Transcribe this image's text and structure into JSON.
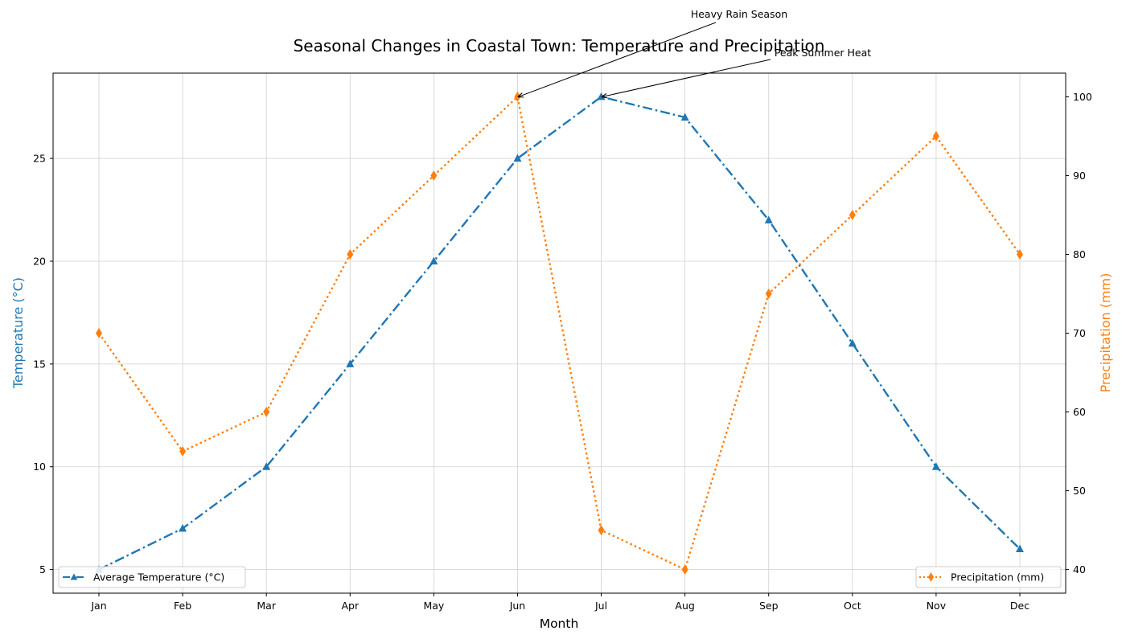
{
  "chart_data": {
    "type": "line",
    "title": "Seasonal Changes in Coastal Town: Temperature and Precipitation",
    "xlabel": "Month",
    "categories": [
      "Jan",
      "Feb",
      "Mar",
      "Apr",
      "May",
      "Jun",
      "Jul",
      "Aug",
      "Sep",
      "Oct",
      "Nov",
      "Dec"
    ],
    "y_left": {
      "label": "Temperature (°C)",
      "color": "#1f77b4",
      "ylim": [
        3.85,
        29.15
      ],
      "ticks": [
        5,
        10,
        15,
        20,
        25
      ]
    },
    "y_right": {
      "label": "Precipitation (mm)",
      "color": "#ff7f0e",
      "ylim": [
        37,
        103
      ],
      "ticks": [
        40,
        50,
        60,
        70,
        80,
        90,
        100
      ]
    },
    "series": [
      {
        "name": "Average Temperature (°C)",
        "axis": "left",
        "color": "#1f77b4",
        "marker": "triangle",
        "linestyle": "dashdot",
        "values": [
          5,
          7,
          10,
          15,
          20,
          25,
          28,
          27,
          22,
          16,
          10,
          6
        ]
      },
      {
        "name": "Precipitation (mm)",
        "axis": "right",
        "color": "#ff7f0e",
        "marker": "diamond",
        "linestyle": "dotted",
        "values": [
          70,
          55,
          60,
          80,
          90,
          100,
          45,
          40,
          75,
          85,
          95,
          80
        ]
      }
    ],
    "annotations": [
      {
        "text": "Heavy Rain Season",
        "category": "Jun",
        "axis": "right",
        "value": 100
      },
      {
        "text": "Peak Summer Heat",
        "category": "Jul",
        "axis": "left",
        "value": 28
      }
    ],
    "grid": true,
    "legends": [
      "lower-left",
      "lower-right"
    ]
  }
}
